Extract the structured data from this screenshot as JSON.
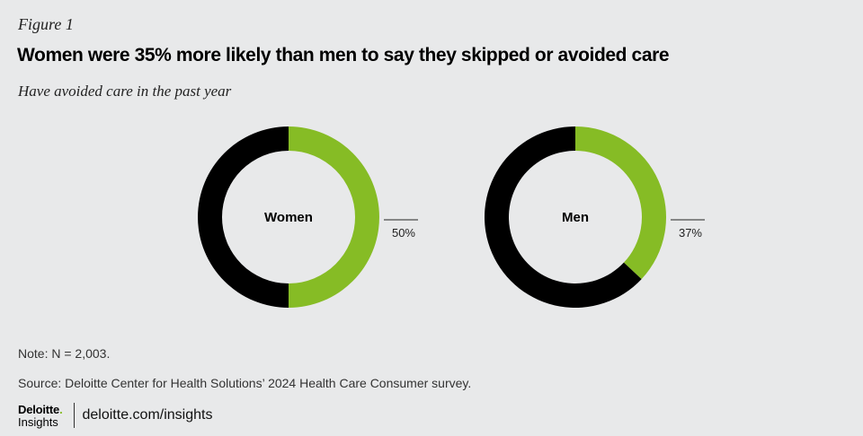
{
  "figure_label": "Figure 1",
  "title": "Women were 35% more likely than men to say they skipped or avoided care",
  "subtitle": "Have avoided care in the past year",
  "chart_data": [
    {
      "type": "pie",
      "center_label": "Women",
      "slices": [
        {
          "label": "50%",
          "value": 50,
          "color": "#86bc25"
        },
        {
          "label": "",
          "value": 50,
          "color": "#000000"
        }
      ]
    },
    {
      "type": "pie",
      "center_label": "Men",
      "slices": [
        {
          "label": "37%",
          "value": 37,
          "color": "#86bc25"
        },
        {
          "label": "",
          "value": 63,
          "color": "#000000"
        }
      ]
    }
  ],
  "note": "Note: N = 2,003.",
  "source": "Source: Deloitte Center for Health Solutions’ 2024 Health Care Consumer survey.",
  "footer": {
    "logo_main": "Deloitte",
    "logo_dot": ".",
    "logo_sub": "Insights",
    "link": "deloitte.com/insights"
  }
}
